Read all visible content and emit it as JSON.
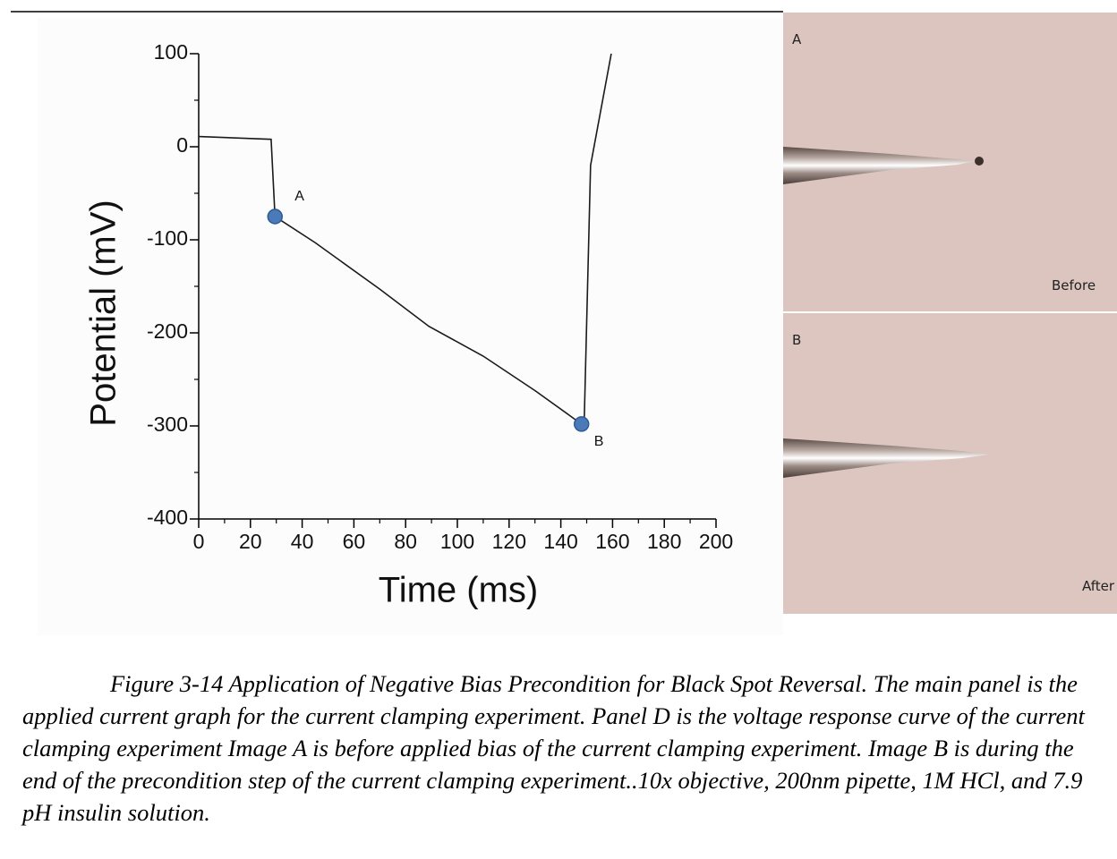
{
  "chart_data": {
    "type": "line",
    "x_label": "Time (ms)",
    "y_label": "Potential (mV)",
    "xlim": [
      0,
      200
    ],
    "ylim": [
      -400,
      100
    ],
    "xticks": [
      0,
      20,
      40,
      60,
      80,
      100,
      120,
      140,
      160,
      180,
      200
    ],
    "yticks": [
      -400,
      -300,
      -200,
      -100,
      0,
      100
    ],
    "series": [
      {
        "color": "#1a1a1a",
        "x": [
          0,
          28,
          29.5,
          45,
          70,
          89,
          110,
          130,
          148,
          149,
          151.5,
          159.5
        ],
        "values": [
          11,
          8,
          -75,
          -103,
          -153,
          -193,
          -225,
          -262,
          -298,
          -300,
          -20,
          100
        ]
      }
    ],
    "points": {
      "color": "#4a7ab8",
      "labels": [
        "A",
        "B"
      ],
      "x": [
        29.5,
        148
      ],
      "values": [
        -75,
        -298
      ]
    }
  },
  "images": [
    {
      "label": "A",
      "caption": "Before"
    },
    {
      "label": "B",
      "caption": "After"
    }
  ],
  "caption": "Figure 3-14 Application of Negative Bias Precondition for Black Spot Reversal. The main panel is the applied current graph for the current clamping experiment. Panel D is the voltage response curve of the current clamping experiment Image A is before applied bias of the current clamping experiment. Image B is during the end of the precondition step of the current clamping experiment..10x objective, 200nm pipette, 1M HCl, and 7.9 pH insulin solution."
}
